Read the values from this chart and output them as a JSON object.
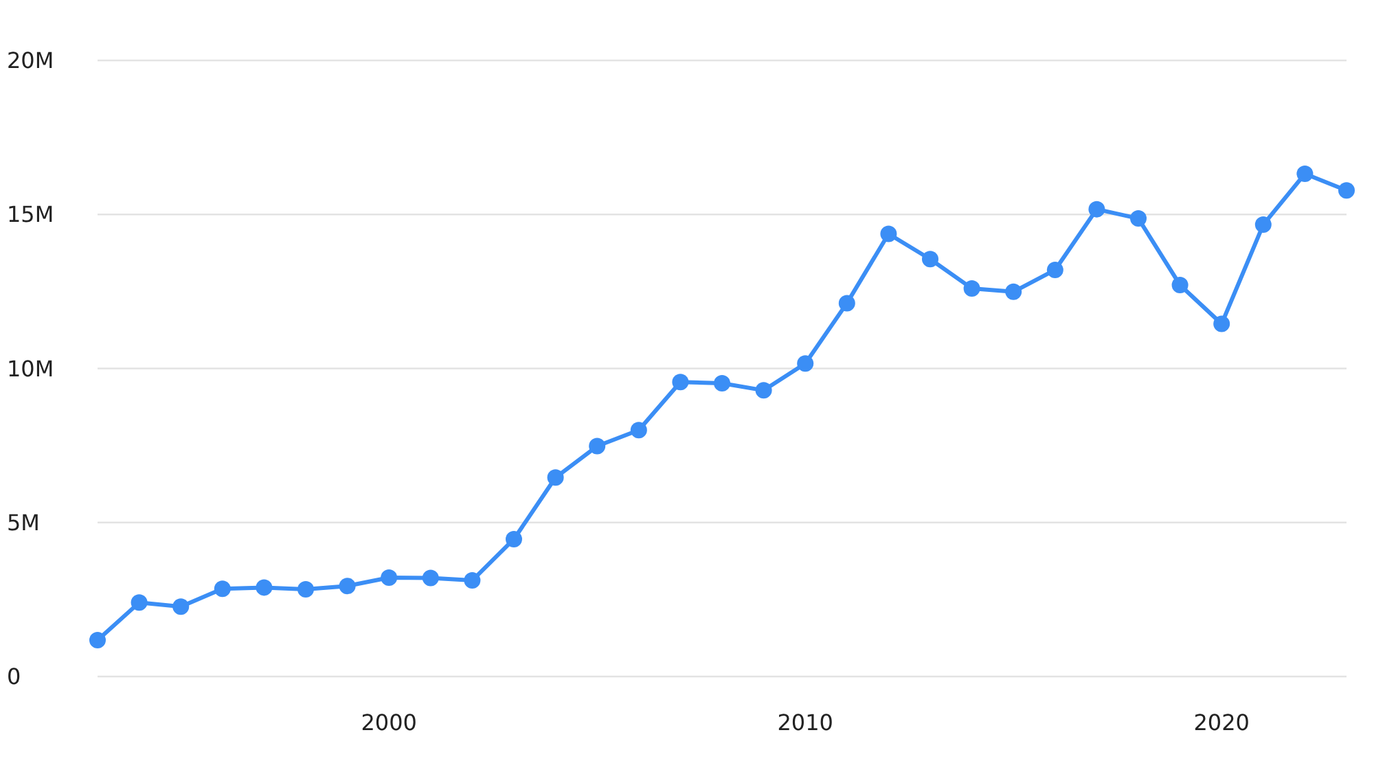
{
  "chart_data": {
    "type": "line",
    "x": [
      1993,
      1994,
      1995,
      1996,
      1997,
      1998,
      1999,
      2000,
      2001,
      2002,
      2003,
      2004,
      2005,
      2006,
      2007,
      2008,
      2009,
      2010,
      2011,
      2012,
      2013,
      2014,
      2015,
      2016,
      2017,
      2018,
      2019,
      2020,
      2021,
      2022,
      2023
    ],
    "values": [
      1180000,
      2400000,
      2270000,
      2850000,
      2890000,
      2830000,
      2940000,
      3210000,
      3200000,
      3120000,
      4460000,
      6460000,
      7480000,
      8000000,
      9560000,
      9520000,
      9290000,
      10160000,
      12120000,
      14370000,
      13550000,
      12600000,
      12490000,
      13200000,
      15170000,
      14870000,
      12710000,
      11450000,
      14670000,
      16320000,
      15780000
    ],
    "color": "#3b8ef5",
    "xlim": [
      1993,
      2023
    ],
    "xticks": [
      2000,
      2010,
      2020
    ],
    "ylim": [
      0,
      20000000
    ],
    "yticks": [
      0,
      {
        "value": 5000000,
        "label": "5M"
      },
      {
        "value": 10000000,
        "label": "10M"
      },
      {
        "value": 15000000,
        "label": "15M"
      },
      {
        "value": 20000000,
        "label": "20M"
      }
    ],
    "grid": "y",
    "marker": "circle",
    "line_style": "solid"
  }
}
